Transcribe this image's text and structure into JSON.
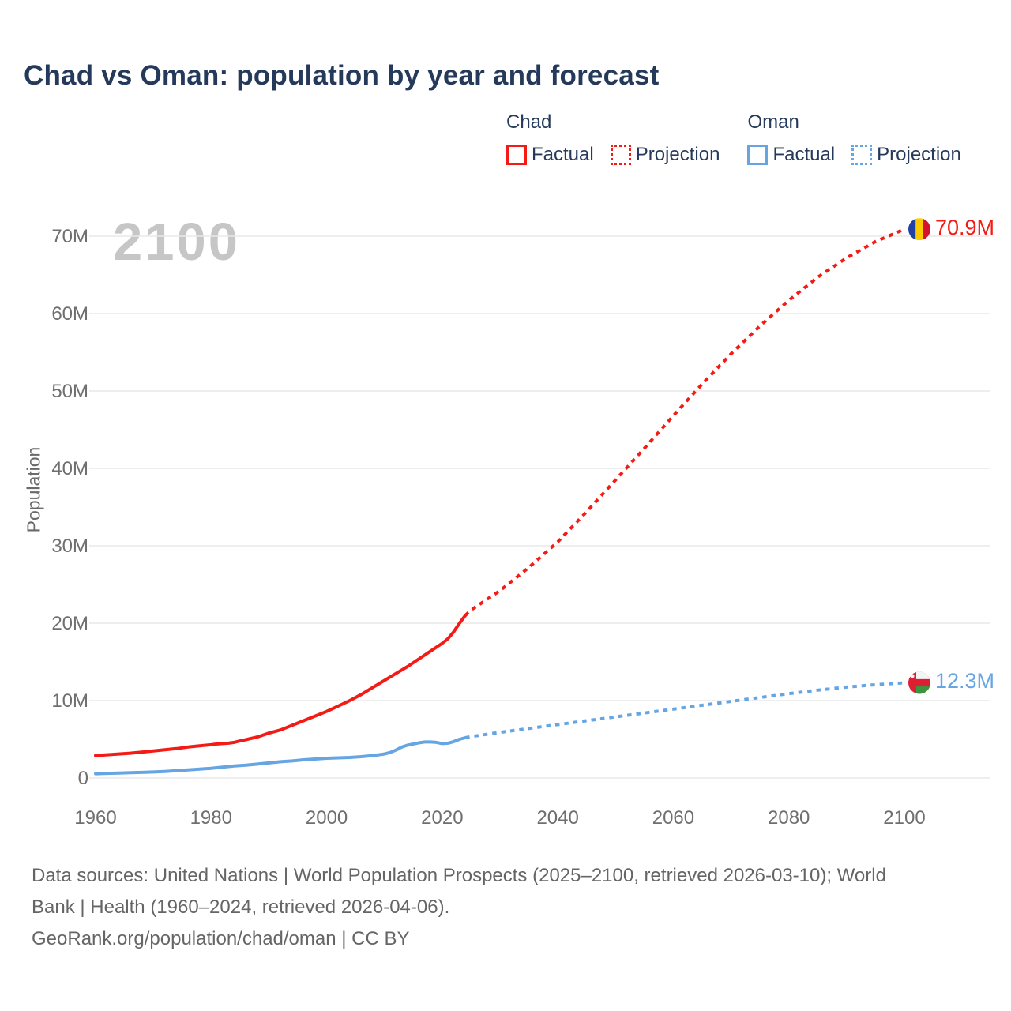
{
  "title": "Chad vs Oman: population by year and forecast",
  "watermark": "2100",
  "legend": {
    "groups": [
      {
        "name": "Chad",
        "items": [
          {
            "label": "Factual",
            "style": "solid"
          },
          {
            "label": "Projection",
            "style": "dotted"
          }
        ]
      },
      {
        "name": "Oman",
        "items": [
          {
            "label": "Factual",
            "style": "solid"
          },
          {
            "label": "Projection",
            "style": "dotted"
          }
        ]
      }
    ]
  },
  "chart_data": {
    "type": "line",
    "title": "Chad vs Oman: population by year and forecast",
    "xlabel": "",
    "ylabel": "Population",
    "units": "millions of people",
    "xlim": [
      1960,
      2100
    ],
    "ylim": [
      0,
      70
    ],
    "grid": "horizontal-only",
    "legend_position": "top-right",
    "x_ticks": [
      1960,
      1980,
      2000,
      2020,
      2040,
      2060,
      2080,
      2100
    ],
    "y_ticks": [
      {
        "value": 0,
        "label": "0"
      },
      {
        "value": 10,
        "label": "10M"
      },
      {
        "value": 20,
        "label": "20M"
      },
      {
        "value": 30,
        "label": "30M"
      },
      {
        "value": 40,
        "label": "40M"
      },
      {
        "value": 50,
        "label": "50M"
      },
      {
        "value": 60,
        "label": "60M"
      },
      {
        "value": 70,
        "label": "70M"
      }
    ],
    "series": [
      {
        "name": "Chad Factual",
        "color": "#f41a15",
        "style": "solid",
        "points": [
          [
            1960,
            2.9
          ],
          [
            1962,
            3.0
          ],
          [
            1964,
            3.1
          ],
          [
            1966,
            3.2
          ],
          [
            1968,
            3.35
          ],
          [
            1970,
            3.5
          ],
          [
            1972,
            3.65
          ],
          [
            1974,
            3.8
          ],
          [
            1976,
            4.0
          ],
          [
            1978,
            4.15
          ],
          [
            1980,
            4.3
          ],
          [
            1981,
            4.4
          ],
          [
            1982,
            4.45
          ],
          [
            1983,
            4.5
          ],
          [
            1984,
            4.6
          ],
          [
            1985,
            4.8
          ],
          [
            1986,
            4.95
          ],
          [
            1988,
            5.3
          ],
          [
            1990,
            5.8
          ],
          [
            1992,
            6.2
          ],
          [
            1994,
            6.8
          ],
          [
            1996,
            7.4
          ],
          [
            1998,
            8.0
          ],
          [
            2000,
            8.6
          ],
          [
            2002,
            9.3
          ],
          [
            2004,
            10.0
          ],
          [
            2006,
            10.8
          ],
          [
            2008,
            11.7
          ],
          [
            2010,
            12.6
          ],
          [
            2012,
            13.5
          ],
          [
            2014,
            14.4
          ],
          [
            2016,
            15.4
          ],
          [
            2018,
            16.4
          ],
          [
            2020,
            17.4
          ],
          [
            2021,
            18.0
          ],
          [
            2022,
            18.9
          ],
          [
            2023,
            20.0
          ],
          [
            2024,
            21.0
          ]
        ]
      },
      {
        "name": "Chad Projection",
        "color": "#f41a15",
        "style": "dashed",
        "end_label": "70.9M",
        "flag": "chad",
        "points": [
          [
            2024,
            21.0
          ],
          [
            2025,
            21.7
          ],
          [
            2030,
            24.2
          ],
          [
            2035,
            27.2
          ],
          [
            2040,
            30.5
          ],
          [
            2045,
            34.4
          ],
          [
            2050,
            38.5
          ],
          [
            2055,
            42.6
          ],
          [
            2060,
            46.8
          ],
          [
            2065,
            50.9
          ],
          [
            2070,
            54.8
          ],
          [
            2075,
            58.4
          ],
          [
            2080,
            61.7
          ],
          [
            2085,
            64.7
          ],
          [
            2090,
            67.2
          ],
          [
            2095,
            69.3
          ],
          [
            2100,
            70.9
          ]
        ]
      },
      {
        "name": "Oman Factual",
        "color": "#66a5e3",
        "style": "solid",
        "points": [
          [
            1960,
            0.55
          ],
          [
            1962,
            0.6
          ],
          [
            1964,
            0.63
          ],
          [
            1966,
            0.68
          ],
          [
            1968,
            0.72
          ],
          [
            1970,
            0.78
          ],
          [
            1972,
            0.85
          ],
          [
            1974,
            0.95
          ],
          [
            1976,
            1.05
          ],
          [
            1978,
            1.15
          ],
          [
            1980,
            1.25
          ],
          [
            1982,
            1.4
          ],
          [
            1984,
            1.55
          ],
          [
            1986,
            1.65
          ],
          [
            1988,
            1.8
          ],
          [
            1990,
            1.95
          ],
          [
            1992,
            2.1
          ],
          [
            1994,
            2.2
          ],
          [
            1996,
            2.35
          ],
          [
            1998,
            2.45
          ],
          [
            2000,
            2.55
          ],
          [
            2002,
            2.6
          ],
          [
            2004,
            2.65
          ],
          [
            2006,
            2.75
          ],
          [
            2008,
            2.9
          ],
          [
            2010,
            3.1
          ],
          [
            2011,
            3.3
          ],
          [
            2012,
            3.6
          ],
          [
            2013,
            4.0
          ],
          [
            2014,
            4.25
          ],
          [
            2015,
            4.4
          ],
          [
            2016,
            4.55
          ],
          [
            2017,
            4.65
          ],
          [
            2018,
            4.65
          ],
          [
            2019,
            4.6
          ],
          [
            2020,
            4.45
          ],
          [
            2021,
            4.5
          ],
          [
            2022,
            4.7
          ],
          [
            2023,
            5.0
          ],
          [
            2024,
            5.2
          ]
        ]
      },
      {
        "name": "Oman Projection",
        "color": "#66a5e3",
        "style": "dashed",
        "end_label": "12.3M",
        "flag": "oman",
        "points": [
          [
            2024,
            5.2
          ],
          [
            2025,
            5.35
          ],
          [
            2030,
            5.9
          ],
          [
            2035,
            6.4
          ],
          [
            2040,
            6.9
          ],
          [
            2045,
            7.4
          ],
          [
            2050,
            7.9
          ],
          [
            2055,
            8.4
          ],
          [
            2060,
            8.9
          ],
          [
            2065,
            9.4
          ],
          [
            2070,
            9.9
          ],
          [
            2075,
            10.4
          ],
          [
            2080,
            10.9
          ],
          [
            2085,
            11.35
          ],
          [
            2090,
            11.75
          ],
          [
            2095,
            12.05
          ],
          [
            2100,
            12.3
          ]
        ]
      }
    ]
  },
  "icons": {
    "chad_flag": {
      "blue": "#2141a5",
      "yellow": "#fecb00",
      "red": "#d5132e"
    },
    "oman_flag": {
      "red": "#dd1f33",
      "white": "#f5f5f5",
      "green": "#3d9440"
    }
  },
  "colors": {
    "title": "#25395a",
    "chad": "#f41a15",
    "oman": "#66a5e3",
    "tick_text": "#6f6f6f",
    "gridline": "#e9e9e9",
    "watermark": "#c6c6c6",
    "footer_text": "#656565"
  },
  "footer": {
    "lines": [
      "Data sources: United Nations | World Population Prospects (2025–2100, retrieved 2026-03-10); World",
      "Bank | Health (1960–2024, retrieved 2026-04-06).",
      "GeoRank.org/population/chad/oman | CC BY"
    ]
  }
}
